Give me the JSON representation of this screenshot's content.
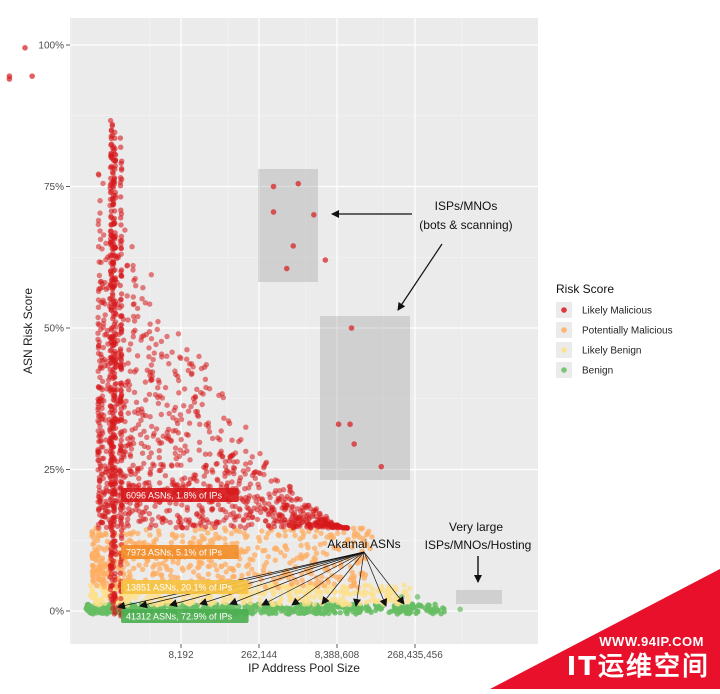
{
  "chart_data": {
    "type": "scatter",
    "xlabel": "IP Address Pool Size",
    "ylabel": "ASN Risk Score",
    "x_scale": "log2",
    "x_ticks": [
      8192,
      262144,
      8388608,
      268435456
    ],
    "x_tick_labels": [
      "8,192",
      "262,144",
      "8,388,608",
      "268,435,456"
    ],
    "y_ticks": [
      0,
      0.25,
      0.5,
      0.75,
      1.0
    ],
    "y_tick_labels": [
      "0%",
      "25%",
      "50%",
      "75%",
      "100%"
    ],
    "grid": true,
    "legend": {
      "title": "Risk Score",
      "placement": "right",
      "entries": [
        {
          "name": "Likely Malicious",
          "color": "#d7191c"
        },
        {
          "name": "Potentially Malicious",
          "color": "#fdae61"
        },
        {
          "name": "Likely Benign",
          "color": "#fee08b"
        },
        {
          "name": "Benign",
          "color": "#66bd63"
        }
      ]
    },
    "series": [
      {
        "name": "Likely Malicious",
        "color": "#d7191c",
        "asn_count": 6096,
        "ip_share": "1.8%",
        "highlighted_points": [
          {
            "x": 8,
            "y": 0.995
          },
          {
            "x": 4,
            "y": 0.94
          },
          {
            "x": 4,
            "y": 0.945
          },
          {
            "x": 11,
            "y": 0.945
          },
          {
            "x": 500000,
            "y": 0.75
          },
          {
            "x": 1500000,
            "y": 0.755
          },
          {
            "x": 3000000,
            "y": 0.7
          },
          {
            "x": 500000,
            "y": 0.705
          },
          {
            "x": 1200000,
            "y": 0.645
          },
          {
            "x": 900000,
            "y": 0.605
          },
          {
            "x": 5000000,
            "y": 0.62
          },
          {
            "x": 16000000,
            "y": 0.5
          },
          {
            "x": 9000000,
            "y": 0.33
          },
          {
            "x": 15000000,
            "y": 0.33
          },
          {
            "x": 18000000,
            "y": 0.295
          },
          {
            "x": 60000000,
            "y": 0.255
          }
        ]
      },
      {
        "name": "Potentially Malicious",
        "color": "#fdae61",
        "asn_count": 7973,
        "ip_share": "5.1%"
      },
      {
        "name": "Likely Benign",
        "color": "#fee08b",
        "asn_count": 13851,
        "ip_share": "20.1%"
      },
      {
        "name": "Benign",
        "color": "#66bd63",
        "asn_count": 41312,
        "ip_share": "72.9%",
        "highlighted_points": [
          {
            "x": 150000000,
            "y": 0.025
          },
          {
            "x": 300000000,
            "y": 0.025
          },
          {
            "x": 2000000000,
            "y": 0.003
          }
        ]
      }
    ],
    "annotations": [
      {
        "text": "ISPs/MNOs\n(bots & scanning)"
      },
      {
        "text": "Akamai ASNs"
      },
      {
        "text": "Very large\nISPs/MNOs/Hosting"
      }
    ],
    "band_labels": [
      {
        "text": "6096 ASNs, 1.8% of IPs",
        "color": "#d7191c"
      },
      {
        "text": "7973 ASNs, 5.1% of IPs",
        "color": "#f28c28"
      },
      {
        "text": "13851 ASNs, 20.1% of IPs",
        "color": "#f5c242"
      },
      {
        "text": "41312 ASNs, 72.9% of IPs",
        "color": "#4caf50"
      }
    ]
  },
  "annotation_lines": {
    "isp": [
      "ISPs/MNOs",
      "(bots & scanning)"
    ],
    "akamai": "Akamai ASNs",
    "large": [
      "Very large",
      "ISPs/MNOs/Hosting"
    ]
  },
  "watermark": {
    "url": "WWW.94IP.COM",
    "name": "IT运维空间",
    "color": "#e8102a"
  }
}
